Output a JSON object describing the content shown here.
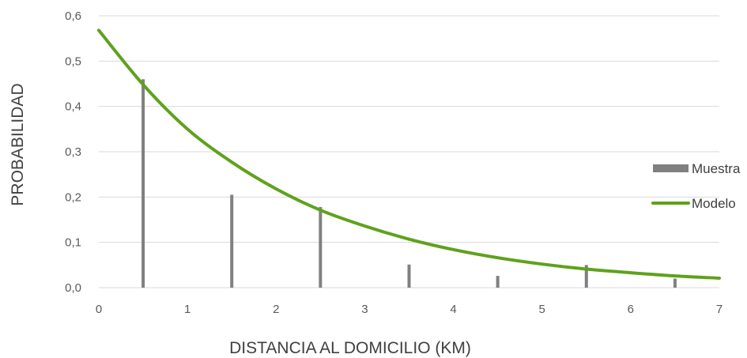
{
  "chart_data": {
    "type": "bar",
    "xlabel": "DISTANCIA AL DOMICILIO (KM)",
    "ylabel": "PROBABILIDAD",
    "xlim": [
      0,
      7
    ],
    "ylim": [
      0,
      0.6
    ],
    "x_ticks": [
      "0",
      "1",
      "2",
      "3",
      "4",
      "5",
      "6",
      "7"
    ],
    "y_ticks": [
      "0,0",
      "0,1",
      "0,2",
      "0,3",
      "0,4",
      "0,5",
      "0,6"
    ],
    "grid": "horizontal",
    "legend_position": "right",
    "series": [
      {
        "name": "Muestra",
        "type": "bar",
        "color": "#808080",
        "x": [
          0.5,
          1.5,
          2.5,
          3.5,
          4.5,
          5.5,
          6.5
        ],
        "values": [
          0.46,
          0.205,
          0.178,
          0.051,
          0.026,
          0.05,
          0.02
        ]
      },
      {
        "name": "Modelo",
        "type": "line",
        "color": "#5ea21c",
        "x": [
          0,
          0.5,
          1,
          1.5,
          2,
          2.5,
          3,
          3.5,
          4,
          4.5,
          5,
          5.5,
          6,
          6.5,
          7
        ],
        "values": [
          0.568,
          0.448,
          0.35,
          0.277,
          0.218,
          0.171,
          0.136,
          0.107,
          0.084,
          0.066,
          0.052,
          0.041,
          0.033,
          0.026,
          0.021
        ]
      }
    ]
  }
}
